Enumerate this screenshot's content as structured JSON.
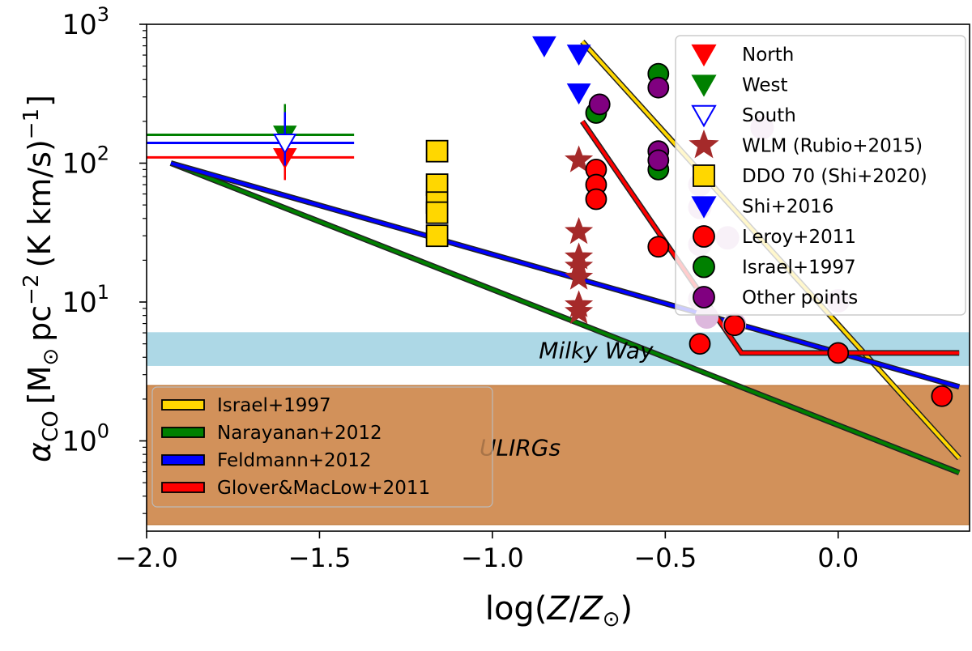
{
  "chart_data": {
    "type": "scatter",
    "xlabel": "log(Z/Z⊙)",
    "xlabel_parts": {
      "prefix": "log(",
      "Z": "Z",
      "slash": "/",
      "Z2": "Z",
      "sun": "⊙",
      "suffix": ")"
    },
    "ylabel_parts": {
      "alpha": "α",
      "sub": "CO",
      "units_a": "[M",
      "sun": "⊙",
      "units_b": "pc",
      "exp1": "−2",
      "units_c": "(K km/s)",
      "exp2": "−1",
      "close": "]"
    },
    "xlim": [
      -2.0,
      0.38
    ],
    "ylim_log10": [
      -0.65,
      3.0
    ],
    "x_ticks": [
      {
        "value": -2.0,
        "label": "−2.0"
      },
      {
        "value": -1.5,
        "label": "−1.5"
      },
      {
        "value": -1.0,
        "label": "−1.0"
      },
      {
        "value": -0.5,
        "label": "−0.5"
      },
      {
        "value": 0.0,
        "label": "0.0"
      }
    ],
    "y_ticks": [
      {
        "value": 0,
        "base": "10",
        "exp": "0"
      },
      {
        "value": 1,
        "base": "10",
        "exp": "1"
      },
      {
        "value": 2,
        "base": "10",
        "exp": "2"
      },
      {
        "value": 3,
        "base": "10",
        "exp": "3"
      }
    ],
    "bands": [
      {
        "name": "Milky Way",
        "y_range": [
          3.5,
          6.0
        ],
        "color": "#add8e6",
        "label_x": -0.7,
        "label_y": 4.5
      },
      {
        "name": "ULIRGs",
        "y_range": [
          0.25,
          2.5
        ],
        "color": "#d2915a",
        "label_x": -0.92,
        "label_y": 0.9
      }
    ],
    "upper_limits": [
      {
        "name": "North",
        "x": -1.6,
        "y": 110,
        "color": "#ff0000",
        "filled": true,
        "hline": [
          -2.0,
          -1.4
        ]
      },
      {
        "name": "West",
        "x": -1.6,
        "y": 160,
        "color": "#008000",
        "filled": true,
        "hline": [
          -2.0,
          -1.4
        ]
      },
      {
        "name": "South",
        "x": -1.6,
        "y": 140,
        "color": "#0000ff",
        "filled": false,
        "hline": [
          -2.0,
          -1.4
        ]
      }
    ],
    "series": [
      {
        "name": "WLM (Rubio+2015)",
        "marker": "star",
        "color": "#a52a2a",
        "points": [
          [
            -0.75,
            105
          ],
          [
            -0.75,
            32
          ],
          [
            -0.75,
            21
          ],
          [
            -0.75,
            18
          ],
          [
            -0.75,
            15
          ],
          [
            -0.75,
            9.5
          ],
          [
            -0.75,
            8.5
          ]
        ]
      },
      {
        "name": "DDO 70 (Shi+2020)",
        "marker": "square",
        "color": "#ffd700",
        "points": [
          [
            -1.16,
            122
          ],
          [
            -1.16,
            70
          ],
          [
            -1.16,
            52
          ],
          [
            -1.16,
            44
          ],
          [
            -1.16,
            30
          ]
        ]
      },
      {
        "name": "Shi+2016",
        "marker": "triangle-down",
        "color": "#0000ff",
        "points": [
          [
            -0.85,
            700
          ],
          [
            -0.75,
            610
          ],
          [
            -0.75,
            320
          ]
        ]
      },
      {
        "name": "Leroy+2011",
        "marker": "circle",
        "color": "#ff0000",
        "points": [
          [
            -0.7,
            90
          ],
          [
            -0.7,
            70
          ],
          [
            -0.7,
            55
          ],
          [
            -0.52,
            25
          ],
          [
            -0.4,
            5.0
          ],
          [
            -0.3,
            6.8
          ],
          [
            0.0,
            4.3
          ],
          [
            0.3,
            2.1
          ]
        ]
      },
      {
        "name": "Israel+1997",
        "marker": "circle",
        "color": "#008000",
        "points": [
          [
            -0.7,
            230
          ],
          [
            -0.52,
            440
          ],
          [
            -0.52,
            90
          ]
        ]
      },
      {
        "name": "Other points",
        "marker": "circle",
        "color": "#800080",
        "points": [
          [
            -0.69,
            265
          ],
          [
            -0.52,
            350
          ],
          [
            -0.52,
            122
          ],
          [
            -0.52,
            105
          ]
        ]
      },
      {
        "name": "faint",
        "marker": "circle",
        "color": "#ddb8dd",
        "legend": false,
        "points": [
          [
            -0.22,
            180
          ],
          [
            -0.4,
            70
          ],
          [
            -0.4,
            48
          ],
          [
            -0.4,
            26
          ],
          [
            -0.32,
            29
          ],
          [
            0.0,
            10.2
          ],
          [
            -0.4,
            10.5
          ],
          [
            -0.38,
            7.8
          ],
          [
            -0.3,
            6.9
          ]
        ]
      }
    ],
    "lines": [
      {
        "name": "Israel+1997",
        "color": "#ffd700",
        "points": [
          [
            -0.74,
            750
          ],
          [
            0.35,
            0.75
          ]
        ]
      },
      {
        "name": "Narayanan+2012",
        "color": "#008000",
        "points": [
          [
            -1.93,
            100
          ],
          [
            0.35,
            0.59
          ]
        ]
      },
      {
        "name": "Feldmann+2012",
        "color": "#0000ff",
        "points": [
          [
            -1.93,
            100
          ],
          [
            0.35,
            2.45
          ]
        ]
      },
      {
        "name": "Glover&MacLow+2011",
        "color": "#ff0000",
        "points": [
          [
            -0.74,
            200
          ],
          [
            -0.28,
            4.3
          ],
          [
            0.35,
            4.3
          ]
        ]
      }
    ],
    "legend_markers": [
      {
        "label": "North",
        "marker": "triangle-down",
        "color": "#ff0000",
        "filled": true
      },
      {
        "label": "West",
        "marker": "triangle-down",
        "color": "#008000",
        "filled": true
      },
      {
        "label": "South",
        "marker": "triangle-down",
        "color": "#0000ff",
        "filled": false
      },
      {
        "label": "WLM (Rubio+2015)",
        "marker": "star",
        "color": "#a52a2a",
        "filled": true
      },
      {
        "label": "DDO 70 (Shi+2020)",
        "marker": "square",
        "color": "#ffd700",
        "filled": true
      },
      {
        "label": "Shi+2016",
        "marker": "triangle-down",
        "color": "#0000ff",
        "filled": true
      },
      {
        "label": "Leroy+2011",
        "marker": "circle",
        "color": "#ff0000",
        "filled": true
      },
      {
        "label": "Israel+1997",
        "marker": "circle",
        "color": "#008000",
        "filled": true
      },
      {
        "label": "Other points",
        "marker": "circle",
        "color": "#800080",
        "filled": true
      }
    ],
    "legend_markers_position": "top-right",
    "legend_lines": [
      {
        "label": "Israel+1997",
        "color": "#ffd700"
      },
      {
        "label": "Narayanan+2012",
        "color": "#008000"
      },
      {
        "label": "Feldmann+2012",
        "color": "#0000ff"
      },
      {
        "label": "Glover&MacLow+2011",
        "color": "#ff0000"
      }
    ],
    "legend_lines_position": "bottom-left"
  }
}
